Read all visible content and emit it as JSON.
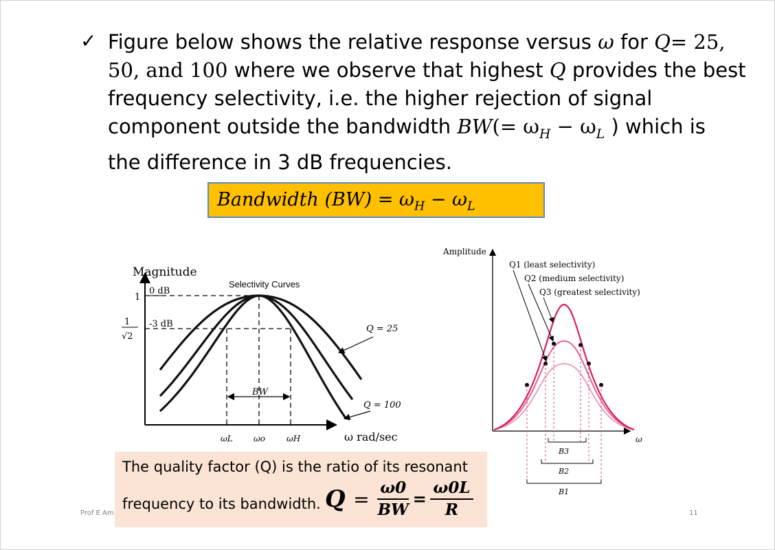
{
  "bullet": {
    "check_icon": "check-icon",
    "line1": {
      "t1": "Figure below shows the relative response versus ",
      "omega": "ω",
      "t2": " for ",
      "Q": "Q",
      "t3": "= 25,",
      "t4": ""
    },
    "line2": {
      "t1": "50, and 100",
      "t2": " where we observe that highest ",
      "Q": "Q",
      "t3": " provides the best"
    },
    "line3": "frequency selectivity, i.e. the higher rejection of signal",
    "line4": {
      "t1": "component outside the bandwidth ",
      "BW": "BW",
      "eq": "(= ω",
      "H": "H",
      "minus": " − ω",
      "L": "L",
      "t2": " ) which is"
    },
    "line5": "the difference in 3 dB frequencies."
  },
  "bw_box": {
    "text": "Bandwidth (BW) =  ω",
    "H": "H",
    "minus": " − ω",
    "L": "L"
  },
  "left_figure": {
    "ylabel": "Magnitude",
    "title": "Selectivity Curves",
    "y_tick_1": "1",
    "y_tick_num": "1",
    "y_tick_den": "√2",
    "label_0db": "0 dB",
    "label_3db": "-3 dB",
    "q25": "Q = 25",
    "q100": "Q = 100",
    "bw": "BW",
    "x_wl": "ωL",
    "x_wo": "ωo",
    "x_wh": "ωH",
    "xlabel": "ω rad/sec"
  },
  "right_figure": {
    "ylabel": "Amplitude",
    "q1": "Q1 (least selectivity)",
    "q2": "Q2 (medium selectivity)",
    "q3": "Q3 (greatest selectivity)",
    "xlabel": "ω",
    "b3": "B3",
    "b2": "B2",
    "b1": "B1",
    "colors": {
      "q3": "#d81b60",
      "q2": "#e0528a",
      "q1": "#ef94b6",
      "dash": "#e2457f"
    }
  },
  "q_box": {
    "line1": "The quality factor (Q) is the ratio of its resonant",
    "line2": "frequency to its bandwidth.",
    "Q": "Q",
    "eq": "=",
    "num1": "ω0",
    "den1": "BW",
    "eq2": "=",
    "num2": "ω0L",
    "den2": "R"
  },
  "footer": {
    "author": "Prof  E  Am",
    "page": "11"
  }
}
